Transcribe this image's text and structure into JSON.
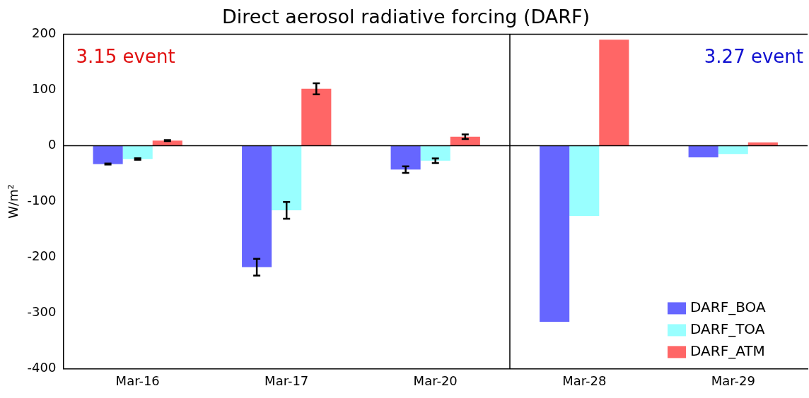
{
  "chart_data": {
    "type": "bar",
    "title": "Direct aerosol radiative forcing (DARF)",
    "ylabel": "W/m²",
    "categories": [
      "Mar-16",
      "Mar-17",
      "Mar-20",
      "Mar-28",
      "Mar-29"
    ],
    "series": [
      {
        "name": "DARF_BOA",
        "color": "#6666ff",
        "values": [
          -33,
          -218,
          -43,
          -316,
          -21
        ],
        "errors": [
          1,
          15,
          6,
          null,
          null
        ]
      },
      {
        "name": "DARF_TOA",
        "color": "#99ffff",
        "values": [
          -24,
          -116,
          -27,
          -126,
          -15
        ],
        "errors": [
          1.5,
          15,
          4,
          null,
          null
        ]
      },
      {
        "name": "DARF_ATM",
        "color": "#ff6666",
        "values": [
          9,
          102,
          16,
          190,
          6
        ],
        "errors": [
          1,
          10,
          4,
          null,
          null
        ]
      }
    ],
    "ylim": [
      -400,
      200
    ],
    "yticks": [
      -400,
      -300,
      -200,
      -100,
      0,
      100,
      200
    ],
    "annotations": [
      "3.15 event",
      "3.27 event"
    ],
    "legend": "bottom right"
  }
}
